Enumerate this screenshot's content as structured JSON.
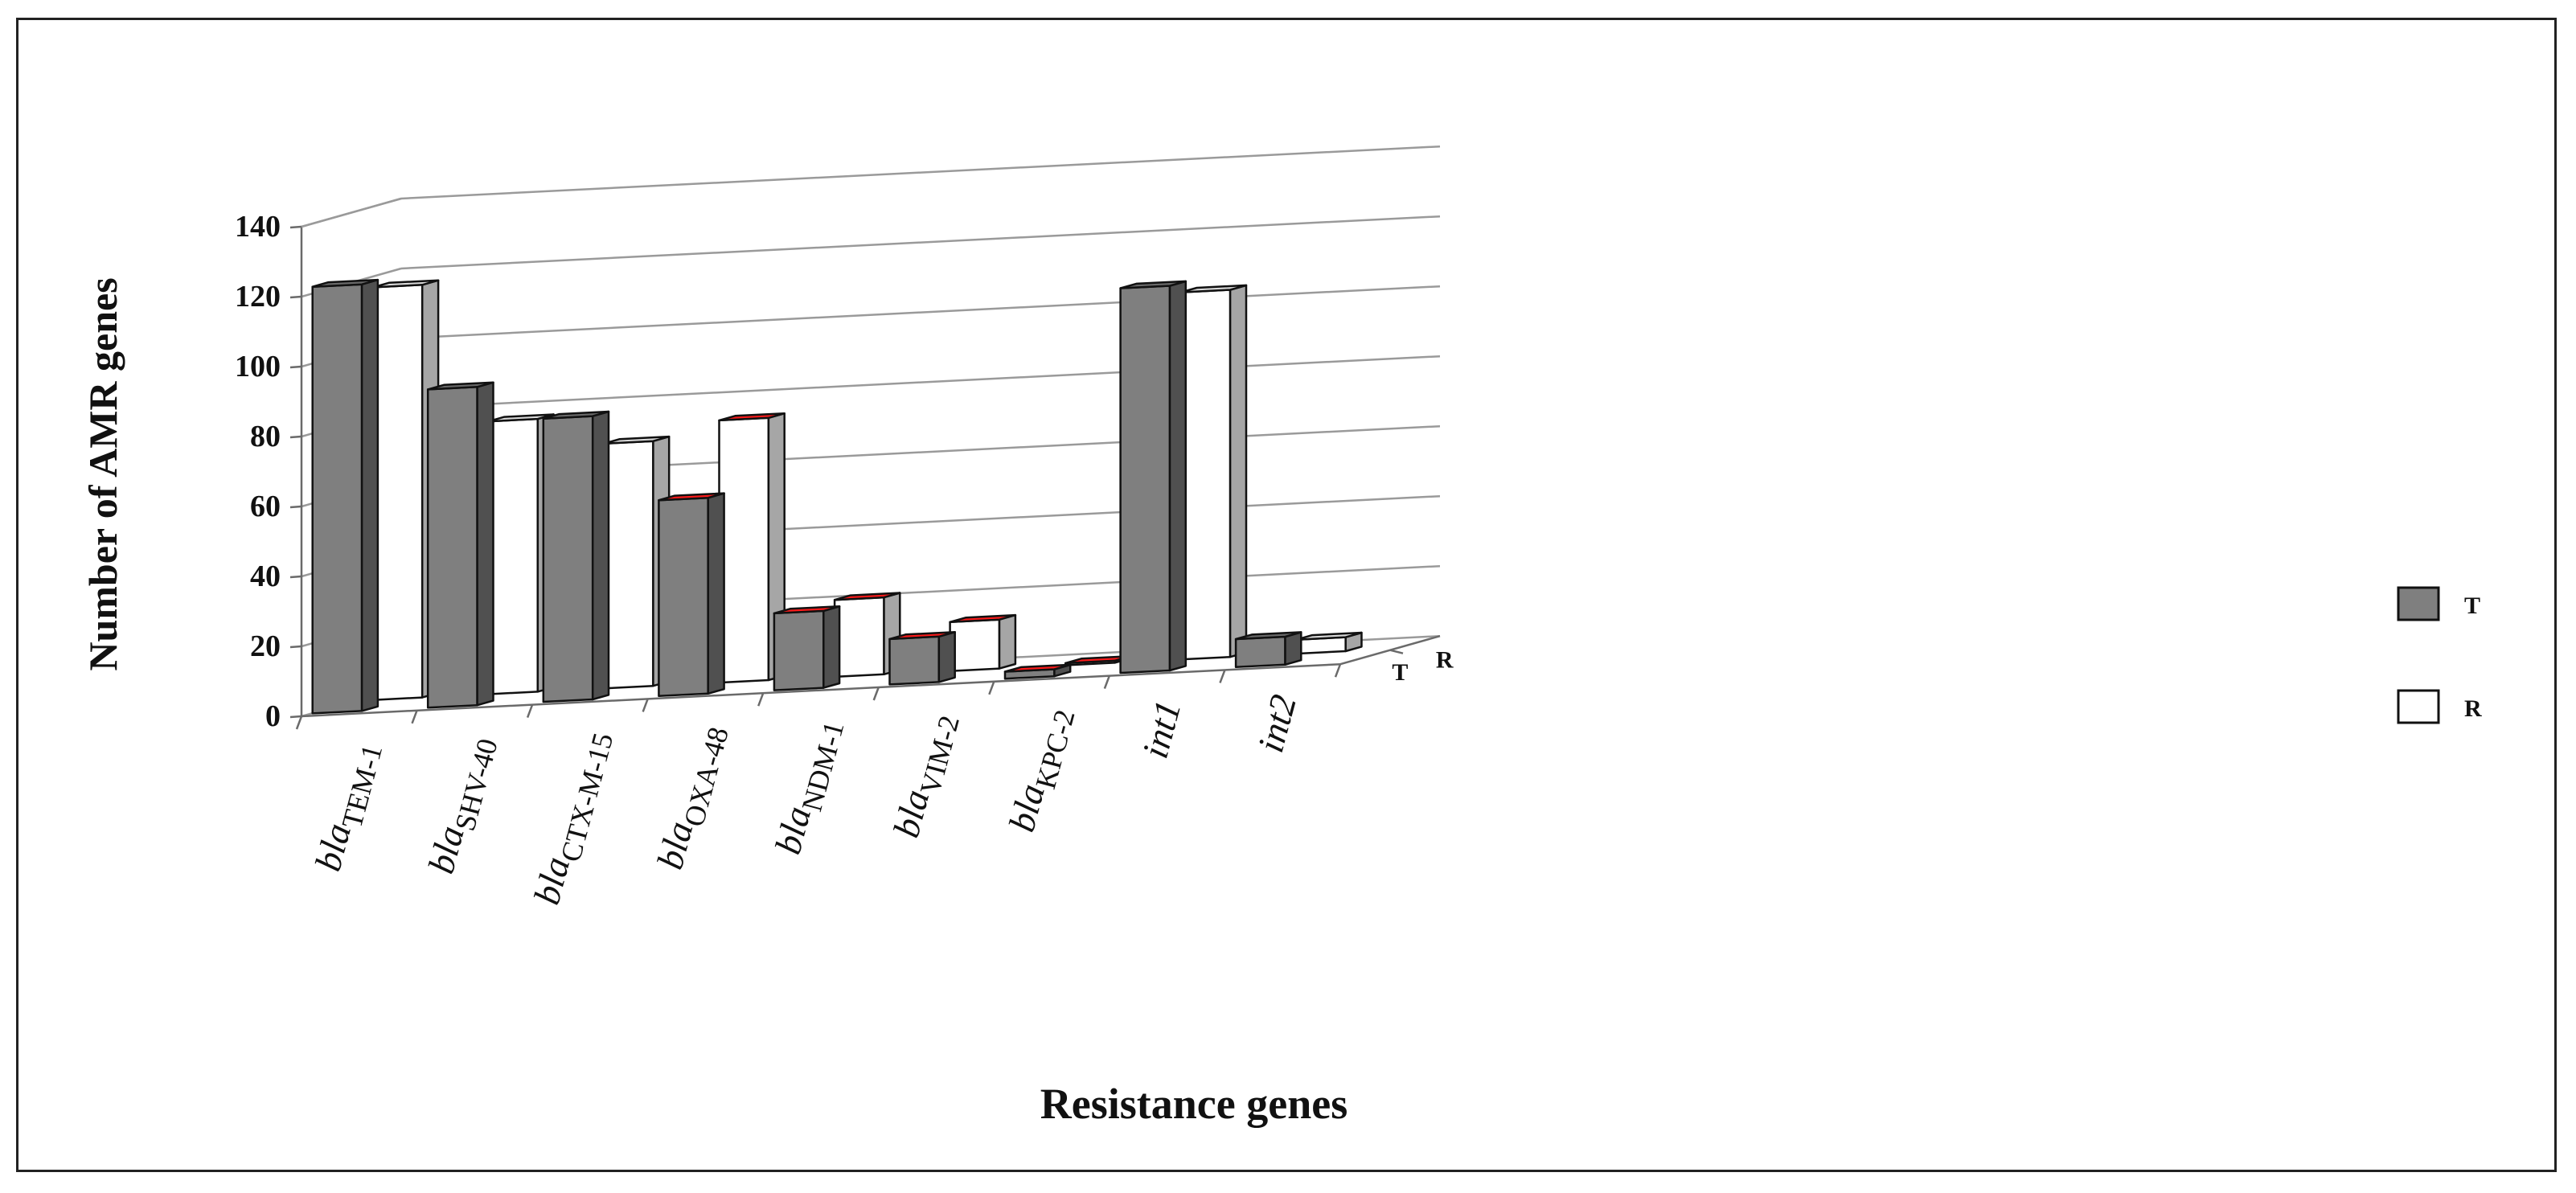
{
  "chart_data": {
    "type": "bar",
    "style": "3d-clustered-depth",
    "xlabel": "Resistance genes",
    "ylabel": "Number of AMR genes",
    "ylim": [
      0,
      140
    ],
    "yticks": [
      "0",
      "20",
      "40",
      "60",
      "80",
      "100",
      "120",
      "140"
    ],
    "categories": [
      {
        "prefix": "bla",
        "sub": "TEM-1"
      },
      {
        "prefix": "bla",
        "sub": "SHV-40"
      },
      {
        "prefix": "bla",
        "sub": "CTX-M-15"
      },
      {
        "prefix": "bla",
        "sub": "OXA-48"
      },
      {
        "prefix": "bla",
        "sub": "NDM-1"
      },
      {
        "prefix": "bla",
        "sub": "VIM-2"
      },
      {
        "prefix": "bla",
        "sub": "KPC-2"
      },
      {
        "prefix": "int",
        "sub": "1"
      },
      {
        "prefix": "int",
        "sub": "2"
      }
    ],
    "series": [
      {
        "name": "T",
        "values": [
          122,
          91,
          81,
          56,
          22,
          13,
          2,
          110,
          8
        ]
      },
      {
        "name": "R",
        "values": [
          118,
          78,
          70,
          75,
          22,
          14,
          0,
          105,
          4
        ]
      }
    ],
    "depth_labels": [
      "R",
      "T"
    ],
    "legend": {
      "position": "right",
      "entries": [
        "T",
        "R"
      ]
    },
    "colors": {
      "T_front": "#7f7f7f",
      "T_side": "#505050",
      "T_top": "#6a6a6a",
      "R_front": "#ffffff",
      "R_side": "#a6a6a6",
      "R_top": "#d9d9d9",
      "highlight_top": "#ff1a1a"
    },
    "highlighted_tops": {
      "T": [
        3,
        4,
        5,
        6
      ],
      "R": [
        3,
        4,
        5,
        6
      ]
    }
  }
}
